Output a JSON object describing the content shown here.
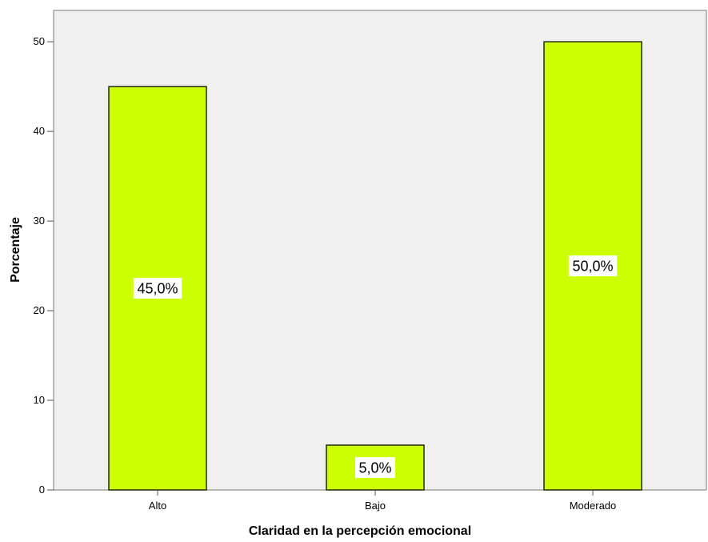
{
  "chart_data": {
    "type": "bar",
    "categories": [
      "Alto",
      "Bajo",
      "Moderado"
    ],
    "values": [
      45.0,
      5.0,
      50.0
    ],
    "data_labels": [
      "45,0%",
      "5,0%",
      "50,0%"
    ],
    "xlabel": "Claridad en la percepción emocional",
    "ylabel": "Porcentaje",
    "ylim": [
      0,
      53.5
    ],
    "yticks": [
      0,
      10,
      20,
      30,
      40,
      50
    ],
    "grid": false,
    "colors": {
      "bar_fill": "#ccff00",
      "bar_stroke": "#1f2a00",
      "plot_background": "#f0f0f0",
      "axis": "#555555"
    }
  }
}
